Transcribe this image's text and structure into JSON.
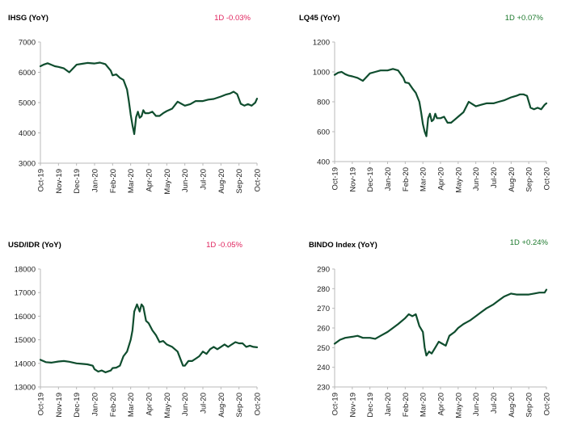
{
  "colors": {
    "line": "#0f4d2e",
    "negative": "#e0245e",
    "positive": "#1e7a2e"
  },
  "chart_data": [
    {
      "type": "line",
      "title": "IHSG (YoY)",
      "change_label": "1D -0.03%",
      "change_sign": "negative",
      "categories": [
        "Oct-19",
        "Nov-19",
        "Dec-19",
        "Jan-20",
        "Feb-20",
        "Mar-20",
        "Apr-20",
        "May-20",
        "Jun-20",
        "Jul-20",
        "Aug-20",
        "Sep-20",
        "Oct-20"
      ],
      "yticks": [
        3000,
        4000,
        5000,
        6000,
        7000
      ],
      "ylim": [
        3000,
        7000
      ],
      "grid": false,
      "series": [
        {
          "x": [
            0,
            0.2,
            0.4,
            0.6,
            0.8,
            1,
            1.3,
            1.6,
            2,
            2.3,
            2.6,
            3,
            3.3,
            3.6,
            3.9,
            4,
            4.2,
            4.4,
            4.6,
            4.8,
            4.9,
            5,
            5.1,
            5.2,
            5.3,
            5.4,
            5.5,
            5.6,
            5.7,
            5.8,
            6,
            6.2,
            6.4,
            6.6,
            6.8,
            7,
            7.3,
            7.6,
            8,
            8.3,
            8.6,
            9,
            9.3,
            9.6,
            10,
            10.3,
            10.5,
            10.7,
            10.9,
            11.1,
            11.3,
            11.5,
            11.7,
            11.9,
            12
          ],
          "values": [
            6200,
            6260,
            6300,
            6250,
            6200,
            6180,
            6130,
            6000,
            6250,
            6280,
            6310,
            6290,
            6320,
            6270,
            6050,
            5900,
            5930,
            5820,
            5750,
            5430,
            5050,
            4600,
            4250,
            3960,
            4520,
            4700,
            4500,
            4550,
            4750,
            4650,
            4650,
            4700,
            4560,
            4560,
            4650,
            4720,
            4800,
            5030,
            4900,
            4950,
            5050,
            5050,
            5100,
            5120,
            5200,
            5270,
            5300,
            5360,
            5280,
            4960,
            4900,
            4950,
            4900,
            5000,
            5130
          ]
        }
      ]
    },
    {
      "type": "line",
      "title": "LQ45 (YoY)",
      "change_label": "1D +0.07%",
      "change_sign": "positive",
      "categories": [
        "Oct-19",
        "Nov-19",
        "Dec-19",
        "Jan-20",
        "Feb-20",
        "Mar-20",
        "Apr-20",
        "May-20",
        "Jun-20",
        "Jul-20",
        "Aug-20",
        "Sep-20",
        "Oct-20"
      ],
      "yticks": [
        400,
        600,
        800,
        1000,
        1200
      ],
      "ylim": [
        400,
        1200
      ],
      "grid": false,
      "series": [
        {
          "x": [
            0,
            0.2,
            0.4,
            0.6,
            0.8,
            1,
            1.3,
            1.6,
            2,
            2.3,
            2.6,
            3,
            3.3,
            3.6,
            3.9,
            4,
            4.2,
            4.4,
            4.6,
            4.8,
            4.9,
            5,
            5.1,
            5.2,
            5.3,
            5.4,
            5.5,
            5.6,
            5.7,
            5.8,
            6,
            6.2,
            6.4,
            6.6,
            6.8,
            7,
            7.3,
            7.6,
            8,
            8.3,
            8.6,
            9,
            9.3,
            9.6,
            10,
            10.3,
            10.5,
            10.7,
            10.9,
            11.1,
            11.3,
            11.5,
            11.7,
            11.9,
            12
          ],
          "values": [
            980,
            995,
            1000,
            985,
            975,
            970,
            960,
            940,
            990,
            1000,
            1010,
            1010,
            1020,
            1010,
            960,
            930,
            925,
            890,
            860,
            800,
            730,
            650,
            600,
            570,
            690,
            720,
            670,
            680,
            720,
            690,
            690,
            700,
            660,
            660,
            680,
            700,
            730,
            800,
            770,
            780,
            790,
            790,
            800,
            810,
            830,
            840,
            850,
            850,
            840,
            760,
            750,
            760,
            750,
            780,
            790
          ]
        }
      ]
    },
    {
      "type": "line",
      "title": "USD/IDR  (YoY)",
      "change_label": "1D -0.05%",
      "change_sign": "negative",
      "categories": [
        "Oct-19",
        "Nov-19",
        "Dec-19",
        "Jan-20",
        "Feb-20",
        "Mar-20",
        "Apr-20",
        "May-20",
        "Jun-20",
        "Jul-20",
        "Aug-20",
        "Sep-20",
        "Oct-20"
      ],
      "yticks": [
        13000,
        14000,
        15000,
        16000,
        17000,
        18000
      ],
      "ylim": [
        13000,
        18000
      ],
      "grid": false,
      "series": [
        {
          "x": [
            0,
            0.3,
            0.6,
            1,
            1.3,
            1.6,
            2,
            2.3,
            2.6,
            2.9,
            3,
            3.2,
            3.4,
            3.6,
            3.9,
            4,
            4.2,
            4.4,
            4.6,
            4.8,
            5,
            5.1,
            5.2,
            5.35,
            5.5,
            5.6,
            5.7,
            5.85,
            6,
            6.2,
            6.4,
            6.6,
            6.8,
            7,
            7.3,
            7.6,
            7.9,
            8,
            8.2,
            8.4,
            8.6,
            8.8,
            9,
            9.2,
            9.4,
            9.6,
            9.8,
            10,
            10.2,
            10.4,
            10.6,
            10.8,
            11,
            11.2,
            11.4,
            11.6,
            11.8,
            12
          ],
          "values": [
            14150,
            14050,
            14030,
            14080,
            14100,
            14070,
            14000,
            13980,
            13960,
            13900,
            13750,
            13650,
            13700,
            13620,
            13700,
            13800,
            13820,
            13900,
            14300,
            14500,
            15000,
            15400,
            16200,
            16500,
            16200,
            16500,
            16400,
            15800,
            15700,
            15400,
            15200,
            14900,
            14950,
            14800,
            14700,
            14500,
            13900,
            13900,
            14100,
            14100,
            14200,
            14300,
            14500,
            14400,
            14600,
            14700,
            14600,
            14700,
            14800,
            14700,
            14800,
            14900,
            14850,
            14850,
            14700,
            14750,
            14700,
            14680
          ]
        }
      ]
    },
    {
      "type": "line",
      "title": "BINDO Index (YoY)",
      "change_label": "1D +0.24%",
      "change_sign": "positive",
      "categories": [
        "Oct-19",
        "Nov-19",
        "Dec-19",
        "Jan-20",
        "Feb-20",
        "Mar-20",
        "Apr-20",
        "May-20",
        "Jun-20",
        "Jul-20",
        "Aug-20",
        "Sep-20",
        "Oct-20"
      ],
      "yticks": [
        230,
        240,
        250,
        260,
        270,
        280,
        290
      ],
      "ylim": [
        230,
        290
      ],
      "grid": false,
      "series": [
        {
          "x": [
            0,
            0.3,
            0.6,
            1,
            1.3,
            1.6,
            2,
            2.3,
            2.6,
            3,
            3.3,
            3.6,
            4,
            4.2,
            4.4,
            4.6,
            4.8,
            5,
            5.1,
            5.2,
            5.35,
            5.5,
            5.7,
            5.9,
            6.1,
            6.3,
            6.5,
            6.8,
            7,
            7.3,
            7.5,
            7.7,
            8,
            8.3,
            8.6,
            9,
            9.3,
            9.6,
            10,
            10.3,
            10.6,
            11,
            11.3,
            11.6,
            11.9,
            12
          ],
          "values": [
            252,
            254,
            255,
            255.5,
            256,
            255,
            255,
            254.5,
            256,
            258,
            260,
            262,
            265,
            267,
            266,
            267,
            261,
            258,
            250,
            246,
            248,
            247,
            250,
            253,
            252,
            251,
            256,
            258,
            260,
            262,
            263,
            264,
            266,
            268,
            270,
            272,
            274,
            276,
            277.5,
            277,
            277,
            277,
            277.5,
            278,
            278,
            279.5
          ]
        }
      ]
    }
  ]
}
